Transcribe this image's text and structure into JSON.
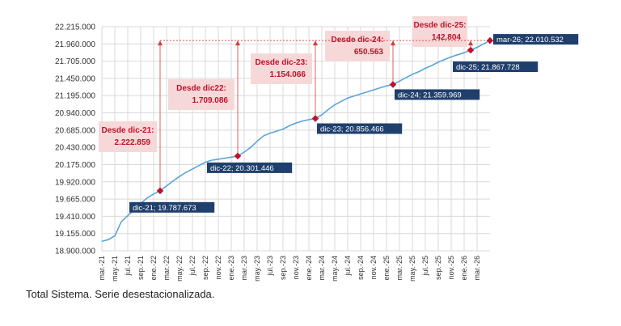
{
  "caption": "Total Sistema. Serie desestacionalizada.",
  "colors": {
    "line": "#5aa5d8",
    "marker": "#c0102a",
    "label_box": "#1f3f6d",
    "label_text": "#ffffff",
    "callout_bg": "#f6d8d8",
    "callout_text": "#c0102a",
    "guide": "#d63a3a",
    "grid": "#d9d9d9",
    "axis_text": "#333333"
  },
  "chart_data": {
    "type": "line",
    "ylim": [
      18900000,
      22215000
    ],
    "y_ticks": [
      "18.900.000",
      "19.155.000",
      "19.410.000",
      "19.665.000",
      "19.920.000",
      "20.175.000",
      "20.430.000",
      "20.685.000",
      "20.940.000",
      "21.195.000",
      "21.450.000",
      "21.705.000",
      "21.960.000",
      "22.215.000"
    ],
    "x_ticks": [
      "mar.-21",
      "may.-21",
      "jul.-21",
      "sep.-21",
      "ene.-22",
      "mar.-22",
      "may.-22",
      "jul.-22",
      "sep.-22",
      "nov.-22",
      "ene.-23",
      "mar.-23",
      "may.-23",
      "jul.-23",
      "sep.-23",
      "nov.-23",
      "ene.-24",
      "mar.-24",
      "may.-24",
      "jul.-24",
      "sep.-24",
      "nov.-24",
      "ene.-25",
      "mar.-25",
      "may.-25",
      "jul.-25",
      "sep.-25",
      "nov.-25",
      "ene.-26",
      "mar.-26"
    ],
    "grid": true,
    "series": [
      {
        "values": [
          [
            "2021-03",
            19040000
          ],
          [
            "2021-04",
            19065000
          ],
          [
            "2021-05",
            19120000
          ],
          [
            "2021-06",
            19330000
          ],
          [
            "2021-07",
            19420000
          ],
          [
            "2021-08",
            19500000
          ],
          [
            "2021-09",
            19600000
          ],
          [
            "2021-10",
            19680000
          ],
          [
            "2021-11",
            19740000
          ],
          [
            "2021-12",
            19787673
          ],
          [
            "2022-01",
            19860000
          ],
          [
            "2022-02",
            19930000
          ],
          [
            "2022-03",
            20000000
          ],
          [
            "2022-04",
            20060000
          ],
          [
            "2022-05",
            20110000
          ],
          [
            "2022-06",
            20160000
          ],
          [
            "2022-07",
            20210000
          ],
          [
            "2022-08",
            20240000
          ],
          [
            "2022-09",
            20255000
          ],
          [
            "2022-10",
            20270000
          ],
          [
            "2022-11",
            20285000
          ],
          [
            "2022-12",
            20301446
          ],
          [
            "2023-01",
            20360000
          ],
          [
            "2023-02",
            20430000
          ],
          [
            "2023-03",
            20520000
          ],
          [
            "2023-04",
            20600000
          ],
          [
            "2023-05",
            20640000
          ],
          [
            "2023-06",
            20670000
          ],
          [
            "2023-07",
            20700000
          ],
          [
            "2023-08",
            20750000
          ],
          [
            "2023-09",
            20790000
          ],
          [
            "2023-10",
            20820000
          ],
          [
            "2023-11",
            20840000
          ],
          [
            "2023-12",
            20856466
          ],
          [
            "2024-01",
            20910000
          ],
          [
            "2024-02",
            20990000
          ],
          [
            "2024-03",
            21060000
          ],
          [
            "2024-04",
            21110000
          ],
          [
            "2024-05",
            21160000
          ],
          [
            "2024-06",
            21190000
          ],
          [
            "2024-07",
            21220000
          ],
          [
            "2024-08",
            21250000
          ],
          [
            "2024-09",
            21280000
          ],
          [
            "2024-10",
            21310000
          ],
          [
            "2024-11",
            21340000
          ],
          [
            "2024-12",
            21359969
          ],
          [
            "2025-01",
            21410000
          ],
          [
            "2025-02",
            21460000
          ],
          [
            "2025-03",
            21510000
          ],
          [
            "2025-04",
            21550000
          ],
          [
            "2025-05",
            21600000
          ],
          [
            "2025-06",
            21640000
          ],
          [
            "2025-07",
            21690000
          ],
          [
            "2025-08",
            21730000
          ],
          [
            "2025-09",
            21770000
          ],
          [
            "2025-10",
            21800000
          ],
          [
            "2025-11",
            21830000
          ],
          [
            "2025-12",
            21867728
          ],
          [
            "2026-01",
            21910000
          ],
          [
            "2026-02",
            21960000
          ],
          [
            "2026-03",
            22010532
          ]
        ]
      }
    ],
    "point_labels": [
      {
        "x": "2021-12",
        "text": "dic-21; 19.787.673"
      },
      {
        "x": "2022-12",
        "text": "dic-22; 20.301.446"
      },
      {
        "x": "2023-12",
        "text": "dic-23; 20.856.466"
      },
      {
        "x": "2024-12",
        "text": "dic-24; 21.359.969"
      },
      {
        "x": "2025-12",
        "text": "dic-25; 21.867.728"
      },
      {
        "x": "2026-03",
        "text": "mar-26; 22.010.532"
      }
    ],
    "callouts": [
      {
        "from": "2021-12",
        "title": "Desde dic-21:",
        "value": "2.222.859"
      },
      {
        "from": "2022-12",
        "title": "Desde dic22:",
        "value": "1.709.086"
      },
      {
        "from": "2023-12",
        "title": "Desde dic-23:",
        "value": "1.154.066"
      },
      {
        "from": "2024-12",
        "title": "Desde dic-24:",
        "value": "650.563"
      },
      {
        "from": "2025-12",
        "title": "Desde dic-25:",
        "value": "142.804"
      }
    ]
  }
}
